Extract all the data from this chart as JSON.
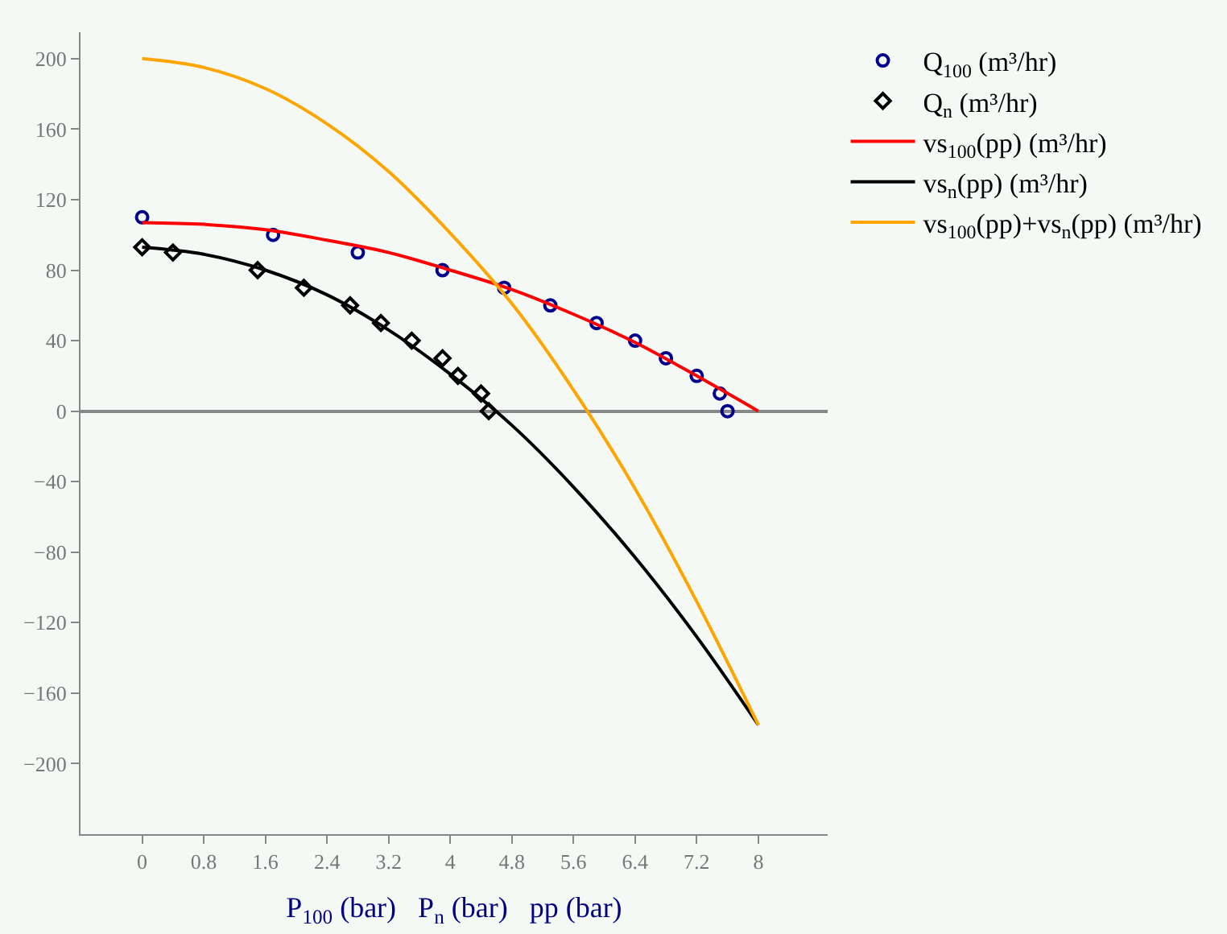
{
  "chart_data": {
    "type": "line",
    "xlabel": "P$_{100}$ (bar)   P$_{n}$ (bar)   pp (bar)",
    "xlim": [
      -0.8,
      8.9
    ],
    "xticks": [
      0,
      0.8,
      1.6,
      2.4,
      3.2,
      {
        "value": 4,
        "label": "4"
      },
      4.8,
      5.6,
      6.4,
      7.2,
      {
        "value": 8,
        "label": "8"
      }
    ],
    "ylim": [
      -240,
      215
    ],
    "yticks": [
      {
        "value": -200,
        "label": "−200"
      },
      {
        "value": -160,
        "label": "−160"
      },
      {
        "value": -120,
        "label": "−120"
      },
      {
        "value": -80,
        "label": "−80"
      },
      {
        "value": -40,
        "label": "−40"
      },
      0,
      40,
      80,
      120,
      160,
      200
    ],
    "legend": "right",
    "series": [
      {
        "name": "Q$_{100}$ (m³/hr)",
        "type": "scatter",
        "marker": "circle",
        "color": "#00008b",
        "x": [
          0,
          1.7,
          2.8,
          3.9,
          4.7,
          5.3,
          5.9,
          6.4,
          6.8,
          7.2,
          7.5,
          7.6
        ],
        "values": [
          110,
          100,
          90,
          80,
          70,
          60,
          50,
          40,
          30,
          20,
          10,
          0
        ]
      },
      {
        "name": "Q$_{n}$ (m³/hr)",
        "type": "scatter",
        "marker": "diamond",
        "color": "#000000",
        "x": [
          0,
          0.4,
          1.5,
          2.1,
          2.7,
          3.1,
          3.5,
          3.9,
          4.1,
          4.4,
          4.5
        ],
        "values": [
          93,
          90,
          80,
          70,
          60,
          50,
          40,
          30,
          20,
          10,
          0
        ]
      },
      {
        "name": "vs$_{100}$(pp) (m³/hr)",
        "color": "#ff0000",
        "x": [
          0,
          0.8,
          1.6,
          2.4,
          3.2,
          4,
          4.8,
          5.6,
          6.4,
          7.2,
          8
        ],
        "values": [
          107,
          106,
          103,
          97,
          90,
          80,
          69,
          55,
          39,
          20,
          0
        ]
      },
      {
        "name": "vs$_{n}$(pp) (m³/hr)",
        "color": "#000000",
        "x": [
          0,
          0.8,
          1.6,
          2.4,
          3.2,
          4,
          4.8,
          5.6,
          6.4,
          7.2,
          8
        ],
        "values": [
          93,
          89,
          80,
          66,
          46,
          21,
          -8,
          -43,
          -83,
          -128,
          -178
        ]
      },
      {
        "name": "vs$_{100}$(pp)+vs$_{n}$(pp) (m³/hr)",
        "color": "#ffa500",
        "x": [
          0,
          0.8,
          1.6,
          2.4,
          3.2,
          4,
          4.8,
          5.6,
          6.4,
          7.2,
          8
        ],
        "values": [
          200,
          195,
          183,
          163,
          136,
          101,
          61,
          12,
          -44,
          -108,
          -178
        ]
      }
    ]
  }
}
